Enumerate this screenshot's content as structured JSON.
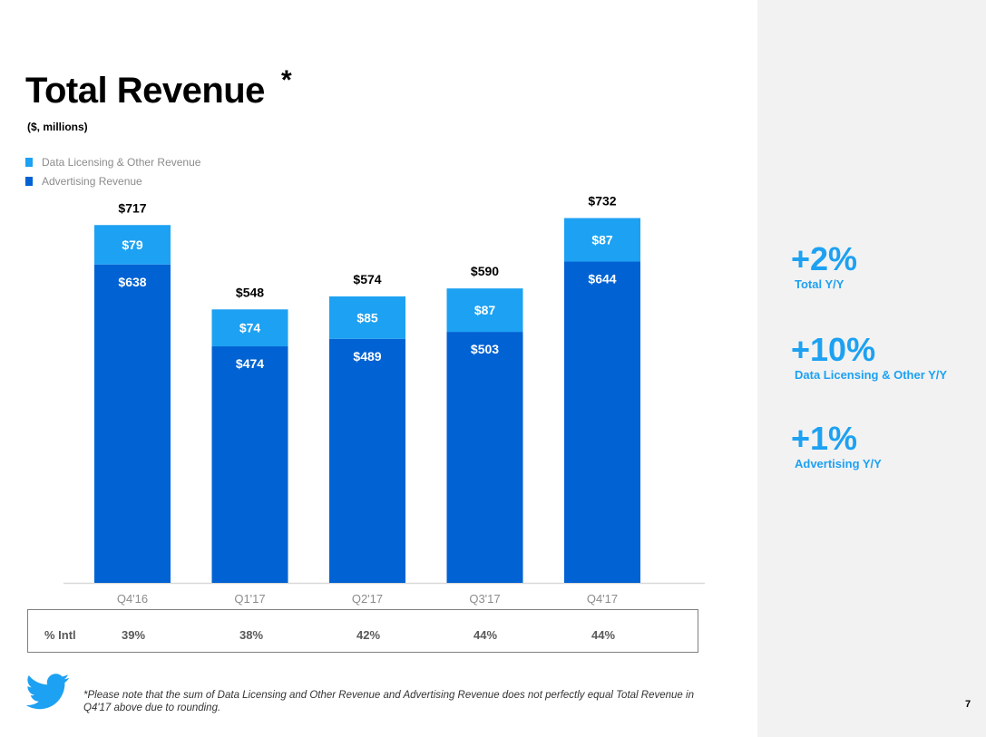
{
  "header": {
    "title": "Total Revenue",
    "title_mark": "*",
    "subtitle": "($, millions)"
  },
  "legend": [
    {
      "label": "Data Licensing & Other Revenue",
      "color": "#1da1f2"
    },
    {
      "label": "Advertising Revenue",
      "color": "#0062d3"
    }
  ],
  "chart_data": {
    "type": "bar",
    "stacked": true,
    "categories": [
      "Q4'16",
      "Q1'17",
      "Q2'17",
      "Q3'17",
      "Q4'17"
    ],
    "series": [
      {
        "name": "Advertising Revenue",
        "values": [
          638,
          474,
          489,
          503,
          644
        ],
        "labels": [
          "$638",
          "$474",
          "$489",
          "$503",
          "$644"
        ],
        "color": "#0062d3"
      },
      {
        "name": "Data Licensing & Other Revenue",
        "values": [
          79,
          74,
          85,
          87,
          87
        ],
        "labels": [
          "$79",
          "$74",
          "$85",
          "$87",
          "$87"
        ],
        "color": "#1da1f2"
      }
    ],
    "totals": [
      717,
      548,
      574,
      590,
      732
    ],
    "total_labels": [
      "$717",
      "$548",
      "$574",
      "$590",
      "$732"
    ],
    "title": "Total Revenue",
    "ylabel": "($, millions)",
    "ylim": [
      0,
      732
    ],
    "grid": false,
    "legend_position": "top-left"
  },
  "intl_row": {
    "label": "% Intl",
    "values": [
      "39%",
      "38%",
      "42%",
      "44%",
      "44%"
    ]
  },
  "stats": [
    {
      "value": "+2%",
      "label": "Total Y/Y"
    },
    {
      "value": "+10%",
      "label": "Data Licensing & Other Y/Y"
    },
    {
      "value": "+1%",
      "label": "Advertising Y/Y"
    }
  ],
  "footer": {
    "footnote": "*Please note that the sum of Data Licensing and Other Revenue and Advertising Revenue does not perfectly equal Total Revenue in Q4'17 above due to rounding.",
    "page_number": "7",
    "logo_icon": "twitter-bird-icon"
  }
}
